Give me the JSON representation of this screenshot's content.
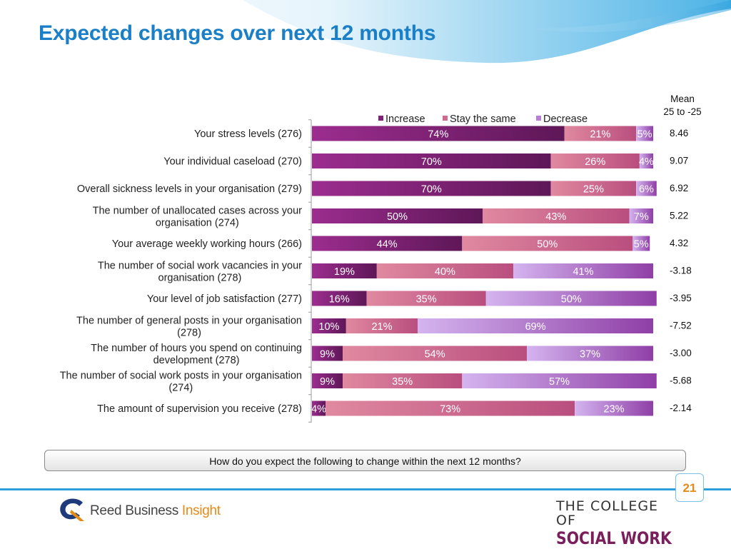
{
  "title": "Expected changes over next 12 months",
  "question": "How do you expect the following to change within the next 12 months?",
  "page_number": "21",
  "logos": {
    "reed_name": "Reed Business",
    "reed_suffix": "Insight",
    "college_line1": "THE COLLEGE OF",
    "college_line2": "SOCIAL WORK"
  },
  "colors": {
    "title": "#1a7fc7",
    "increase": "#7e2275",
    "stay_the_same": "#cf6a8a",
    "decrease": "#b97fd8",
    "accent_line": "#2c9fd8",
    "page_number": "#e58a18"
  },
  "chart_data": {
    "type": "bar",
    "orientation": "horizontal",
    "stacked": true,
    "mean_header": [
      "Mean",
      "25 to -25"
    ],
    "legend_position": "top",
    "categories": [
      [
        "Your stress levels (276)"
      ],
      [
        "Your individual caseload (270)"
      ],
      [
        "Overall sickness levels in your organisation (279)"
      ],
      [
        "The number of unallocated cases across your",
        "organisation (274)"
      ],
      [
        "Your average weekly working hours (266)"
      ],
      [
        "The number of social work vacancies in your",
        "organisation (278)"
      ],
      [
        "Your level of job satisfaction (277)"
      ],
      [
        "The number of general posts in your organisation",
        "(278)"
      ],
      [
        "The number of hours you spend on continuing",
        "development (278)"
      ],
      [
        "The number of social work posts in your organisation",
        "(274)"
      ],
      [
        "The amount of supervision you receive (278)"
      ]
    ],
    "series": [
      {
        "name": "Increase",
        "values": [
          74,
          70,
          70,
          50,
          44,
          19,
          16,
          10,
          9,
          9,
          4
        ]
      },
      {
        "name": "Stay the same",
        "values": [
          21,
          26,
          25,
          43,
          50,
          40,
          35,
          21,
          54,
          35,
          73
        ]
      },
      {
        "name": "Decrease",
        "values": [
          5,
          4,
          6,
          7,
          5,
          41,
          50,
          69,
          37,
          57,
          23
        ]
      }
    ],
    "means": [
      "8.46",
      "9.07",
      "6.92",
      "5.22",
      "4.32",
      "-3.18",
      "-3.95",
      "-7.52",
      "-3.00",
      "-5.68",
      "-2.14"
    ],
    "value_suffix": "%",
    "xlim": [
      0,
      100
    ]
  }
}
